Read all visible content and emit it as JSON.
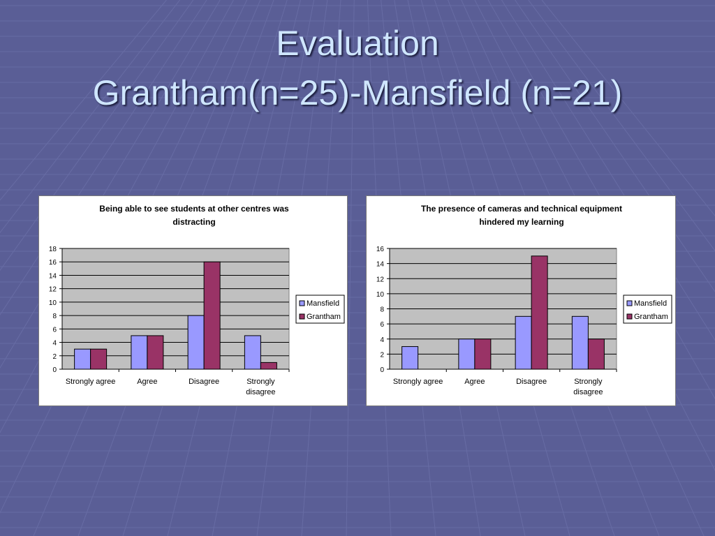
{
  "slide": {
    "title_line1": "Evaluation",
    "title_line2": "Grantham(n=25)-Mansfield (n=21)"
  },
  "colors": {
    "background": "#5a5e96",
    "title_text": "#cfe6ff",
    "plot_area": "#c0c0c0",
    "mansfield": "#9999ff",
    "grantham": "#993366"
  },
  "chart_data": [
    {
      "type": "bar",
      "title_line1": "Being able to see students at other centres was",
      "title_line2": "distracting",
      "categories": [
        [
          "Strongly agree"
        ],
        [
          "Agree"
        ],
        [
          "Disagree"
        ],
        [
          "Strongly",
          "disagree"
        ]
      ],
      "series": [
        {
          "name": "Mansfield",
          "color": "#9999ff",
          "values": [
            3,
            5,
            8,
            5
          ]
        },
        {
          "name": "Grantham",
          "color": "#993366",
          "values": [
            3,
            5,
            16,
            1
          ]
        }
      ],
      "ylim": [
        0,
        18
      ],
      "yticks": [
        0,
        2,
        4,
        6,
        8,
        10,
        12,
        14,
        16,
        18
      ],
      "grid": true,
      "legend": "right"
    },
    {
      "type": "bar",
      "title_line1": "The presence of cameras and technical equipment",
      "title_line2": "hindered my learning",
      "categories": [
        [
          "Strongly agree"
        ],
        [
          "Agree"
        ],
        [
          "Disagree"
        ],
        [
          "Strongly",
          "disagree"
        ]
      ],
      "series": [
        {
          "name": "Mansfield",
          "color": "#9999ff",
          "values": [
            3,
            4,
            7,
            7
          ]
        },
        {
          "name": "Grantham",
          "color": "#993366",
          "values": [
            0,
            4,
            15,
            4
          ]
        }
      ],
      "ylim": [
        0,
        16
      ],
      "yticks": [
        0,
        2,
        4,
        6,
        8,
        10,
        12,
        14,
        16
      ],
      "grid": true,
      "legend": "right"
    }
  ]
}
